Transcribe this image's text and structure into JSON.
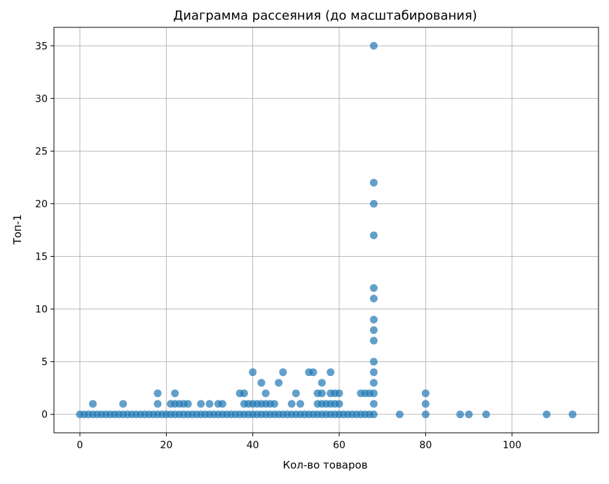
{
  "chart_data": {
    "type": "scatter",
    "title": "Диаграмма рассеяния (до масштабирования)",
    "xlabel": "Кол-во товаров",
    "ylabel": "Топ-1",
    "xlim": [
      -6,
      120
    ],
    "ylim": [
      -1.75,
      36.75
    ],
    "xticks": [
      0,
      20,
      40,
      60,
      80,
      100
    ],
    "yticks": [
      0,
      5,
      10,
      15,
      20,
      25,
      30,
      35
    ],
    "grid": true,
    "marker_color": "#1f77b4",
    "marker_alpha": 0.7,
    "series": [
      {
        "points": [
          [
            0,
            0
          ],
          [
            1,
            0
          ],
          [
            2,
            0
          ],
          [
            3,
            0
          ],
          [
            4,
            0
          ],
          [
            5,
            0
          ],
          [
            6,
            0
          ],
          [
            7,
            0
          ],
          [
            8,
            0
          ],
          [
            9,
            0
          ],
          [
            10,
            0
          ],
          [
            11,
            0
          ],
          [
            12,
            0
          ],
          [
            13,
            0
          ],
          [
            14,
            0
          ],
          [
            15,
            0
          ],
          [
            16,
            0
          ],
          [
            17,
            0
          ],
          [
            18,
            0
          ],
          [
            19,
            0
          ],
          [
            20,
            0
          ],
          [
            21,
            0
          ],
          [
            22,
            0
          ],
          [
            23,
            0
          ],
          [
            24,
            0
          ],
          [
            25,
            0
          ],
          [
            26,
            0
          ],
          [
            27,
            0
          ],
          [
            28,
            0
          ],
          [
            29,
            0
          ],
          [
            30,
            0
          ],
          [
            31,
            0
          ],
          [
            32,
            0
          ],
          [
            33,
            0
          ],
          [
            34,
            0
          ],
          [
            35,
            0
          ],
          [
            36,
            0
          ],
          [
            37,
            0
          ],
          [
            38,
            0
          ],
          [
            39,
            0
          ],
          [
            40,
            0
          ],
          [
            41,
            0
          ],
          [
            42,
            0
          ],
          [
            43,
            0
          ],
          [
            44,
            0
          ],
          [
            45,
            0
          ],
          [
            46,
            0
          ],
          [
            47,
            0
          ],
          [
            48,
            0
          ],
          [
            49,
            0
          ],
          [
            50,
            0
          ],
          [
            51,
            0
          ],
          [
            52,
            0
          ],
          [
            53,
            0
          ],
          [
            54,
            0
          ],
          [
            55,
            0
          ],
          [
            56,
            0
          ],
          [
            57,
            0
          ],
          [
            58,
            0
          ],
          [
            59,
            0
          ],
          [
            60,
            0
          ],
          [
            61,
            0
          ],
          [
            62,
            0
          ],
          [
            63,
            0
          ],
          [
            64,
            0
          ],
          [
            65,
            0
          ],
          [
            66,
            0
          ],
          [
            67,
            0
          ],
          [
            68,
            0
          ],
          [
            74,
            0
          ],
          [
            80,
            0
          ],
          [
            88,
            0
          ],
          [
            90,
            0
          ],
          [
            94,
            0
          ],
          [
            108,
            0
          ],
          [
            114,
            0
          ],
          [
            3,
            1
          ],
          [
            10,
            1
          ],
          [
            18,
            1
          ],
          [
            21,
            1
          ],
          [
            22,
            1
          ],
          [
            23,
            1
          ],
          [
            24,
            1
          ],
          [
            25,
            1
          ],
          [
            28,
            1
          ],
          [
            30,
            1
          ],
          [
            32,
            1
          ],
          [
            33,
            1
          ],
          [
            38,
            1
          ],
          [
            39,
            1
          ],
          [
            40,
            1
          ],
          [
            41,
            1
          ],
          [
            42,
            1
          ],
          [
            43,
            1
          ],
          [
            44,
            1
          ],
          [
            45,
            1
          ],
          [
            49,
            1
          ],
          [
            51,
            1
          ],
          [
            55,
            1
          ],
          [
            56,
            1
          ],
          [
            57,
            1
          ],
          [
            58,
            1
          ],
          [
            59,
            1
          ],
          [
            60,
            1
          ],
          [
            68,
            1
          ],
          [
            80,
            1
          ],
          [
            18,
            2
          ],
          [
            22,
            2
          ],
          [
            37,
            2
          ],
          [
            38,
            2
          ],
          [
            43,
            2
          ],
          [
            50,
            2
          ],
          [
            55,
            2
          ],
          [
            56,
            2
          ],
          [
            58,
            2
          ],
          [
            59,
            2
          ],
          [
            60,
            2
          ],
          [
            65,
            2
          ],
          [
            66,
            2
          ],
          [
            67,
            2
          ],
          [
            68,
            2
          ],
          [
            80,
            2
          ],
          [
            42,
            3
          ],
          [
            46,
            3
          ],
          [
            56,
            3
          ],
          [
            68,
            3
          ],
          [
            40,
            4
          ],
          [
            47,
            4
          ],
          [
            53,
            4
          ],
          [
            54,
            4
          ],
          [
            58,
            4
          ],
          [
            68,
            4
          ],
          [
            68,
            5
          ],
          [
            68,
            7
          ],
          [
            68,
            8
          ],
          [
            68,
            9
          ],
          [
            68,
            11
          ],
          [
            68,
            12
          ],
          [
            68,
            17
          ],
          [
            68,
            20
          ],
          [
            68,
            22
          ],
          [
            68,
            35
          ]
        ]
      }
    ]
  }
}
